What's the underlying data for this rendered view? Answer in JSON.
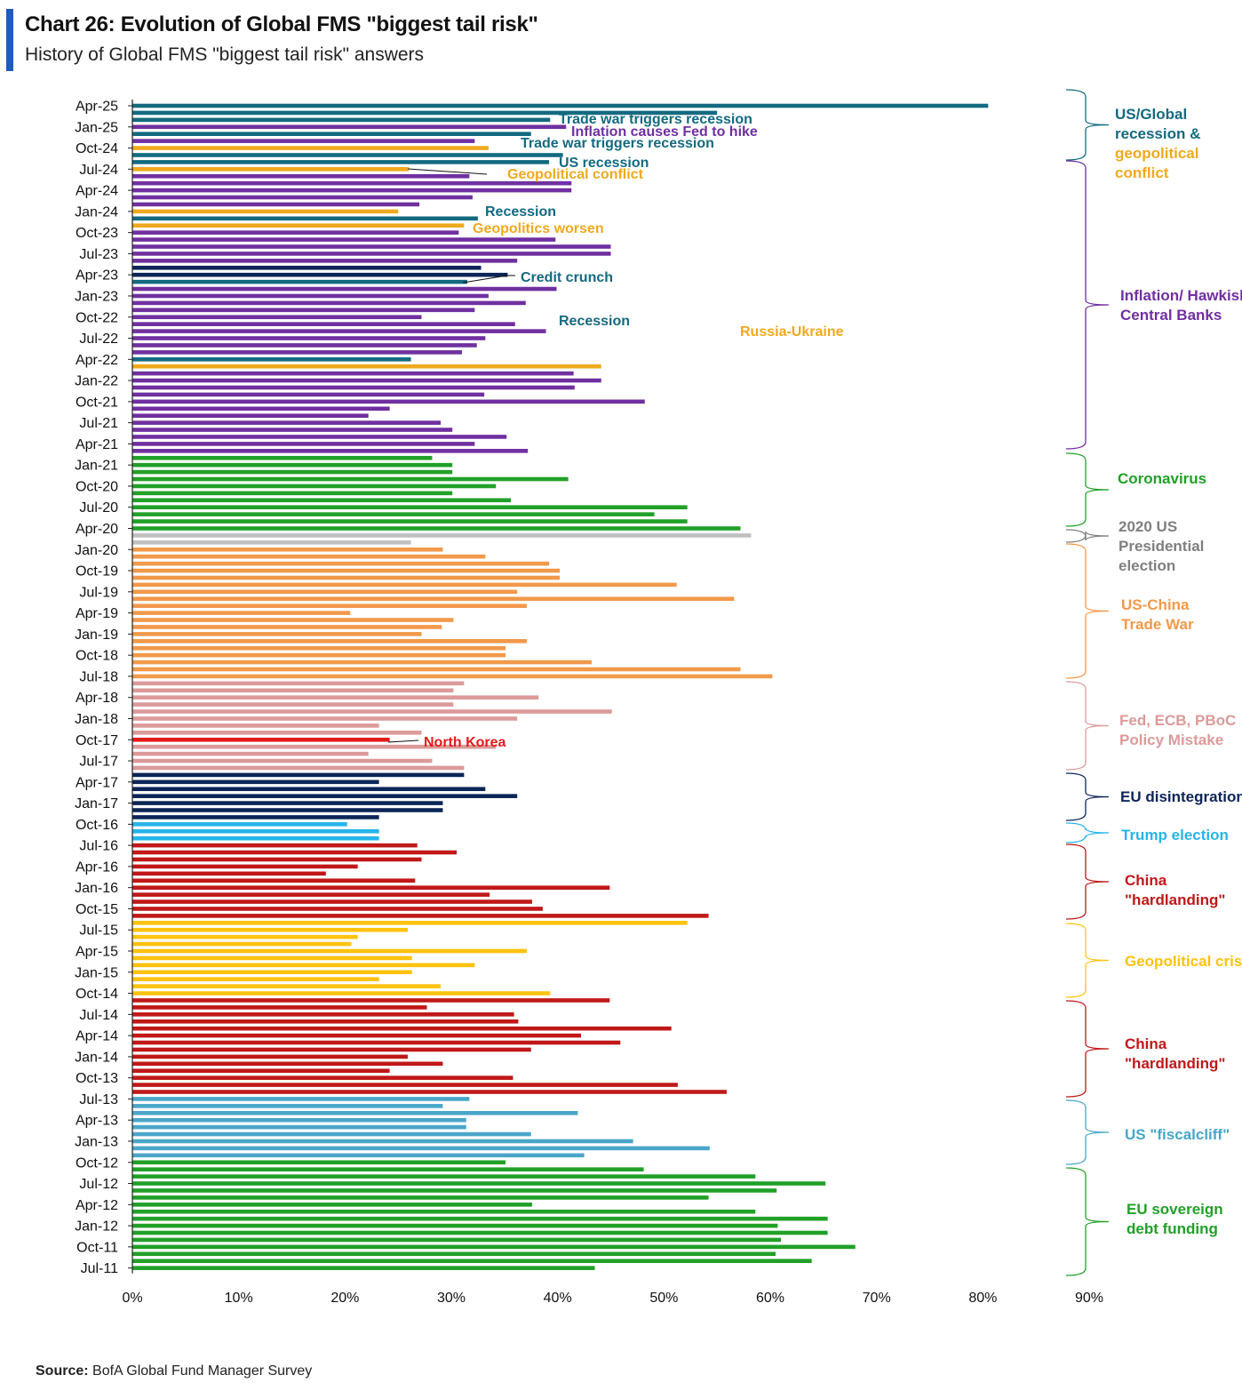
{
  "header": {
    "title": "Chart 26: Evolution of Global FMS \"biggest tail risk\"",
    "subtitle": "History of Global FMS \"biggest tail risk\" answers"
  },
  "footer": {
    "source_label": "Source:",
    "source_text": "BofA Global Fund Manager Survey"
  },
  "chart_data": {
    "type": "bar",
    "orientation": "horizontal",
    "title": "Chart 26: Evolution of Global FMS \"biggest tail risk\"",
    "subtitle": "History of Global FMS \"biggest tail risk\" answers",
    "xlim": [
      0,
      90
    ],
    "x_ticks": [
      "0%",
      "10%",
      "20%",
      "30%",
      "40%",
      "50%",
      "60%",
      "70%",
      "80%",
      "90%"
    ],
    "y_tick_labels": [
      "Apr-25",
      "Jan-25",
      "Oct-24",
      "Jul-24",
      "Apr-24",
      "Jan-24",
      "Oct-23",
      "Jul-23",
      "Apr-23",
      "Jan-23",
      "Oct-22",
      "Jul-22",
      "Apr-22",
      "Jan-22",
      "Oct-21",
      "Jul-21",
      "Apr-21",
      "Jan-21",
      "Oct-20",
      "Jul-20",
      "Apr-20",
      "Jan-20",
      "Oct-19",
      "Jul-19",
      "Apr-19",
      "Jan-19",
      "Oct-18",
      "Jul-18",
      "Apr-18",
      "Jan-18",
      "Oct-17",
      "Jul-17",
      "Apr-17",
      "Jan-17",
      "Oct-16",
      "Jul-16",
      "Apr-16",
      "Jan-16",
      "Oct-15",
      "Jul-15",
      "Apr-15",
      "Jan-15",
      "Oct-14",
      "Jul-14",
      "Apr-14",
      "Jan-14",
      "Oct-13",
      "Jul-13",
      "Apr-13",
      "Jan-13",
      "Oct-12",
      "Jul-12",
      "Apr-12",
      "Jan-12",
      "Oct-11",
      "Jul-11"
    ],
    "colors": {
      "teal": "#136a80",
      "purple": "#7030a0",
      "orange_gold": "#f0a91e",
      "navy": "#0c2557",
      "green": "#21a028",
      "gray": "#bfbfbf",
      "orange": "#f2994a",
      "pink": "#dc9a9a",
      "red": "#e51a1a",
      "sky": "#27b5ea",
      "darkred": "#c01818",
      "yellow": "#ffc20e",
      "steel": "#4aa6c8"
    },
    "bars": [
      {
        "month": "Apr-25",
        "value": 80.5,
        "color": "teal"
      },
      {
        "month": "Mar-25",
        "value": 55,
        "color": "teal"
      },
      {
        "month": "Feb-25",
        "value": 39.3,
        "color": "teal"
      },
      {
        "month": "Jan-25",
        "value": 40.8,
        "color": "purple"
      },
      {
        "month": "Dec-24",
        "value": 37.5,
        "color": "teal"
      },
      {
        "month": "Nov-24",
        "value": 32.2,
        "color": "purple"
      },
      {
        "month": "Oct-24",
        "value": 33.5,
        "color": "orange_gold"
      },
      {
        "month": "Sep-24",
        "value": 40.5,
        "color": "teal"
      },
      {
        "month": "Aug-24",
        "value": 39.2,
        "color": "teal"
      },
      {
        "month": "Jul-24",
        "value": 26,
        "color": "orange_gold"
      },
      {
        "month": "Jun-24",
        "value": 31.7,
        "color": "purple"
      },
      {
        "month": "May-24",
        "value": 41.3,
        "color": "purple"
      },
      {
        "month": "Apr-24",
        "value": 41.3,
        "color": "purple"
      },
      {
        "month": "Mar-24",
        "value": 32,
        "color": "purple"
      },
      {
        "month": "Feb-24",
        "value": 27,
        "color": "purple"
      },
      {
        "month": "Jan-24",
        "value": 25,
        "color": "orange_gold"
      },
      {
        "month": "Dec-23",
        "value": 32.5,
        "color": "teal"
      },
      {
        "month": "Nov-23",
        "value": 31.2,
        "color": "orange_gold"
      },
      {
        "month": "Oct-23",
        "value": 30.7,
        "color": "purple"
      },
      {
        "month": "Sep-23",
        "value": 39.8,
        "color": "purple"
      },
      {
        "month": "Aug-23",
        "value": 45,
        "color": "purple"
      },
      {
        "month": "Jul-23",
        "value": 45,
        "color": "purple"
      },
      {
        "month": "Jun-23",
        "value": 36.2,
        "color": "purple"
      },
      {
        "month": "May-23",
        "value": 32.8,
        "color": "navy"
      },
      {
        "month": "Apr-23",
        "value": 35.3,
        "color": "navy"
      },
      {
        "month": "Mar-23",
        "value": 31.5,
        "color": "teal"
      },
      {
        "month": "Feb-23",
        "value": 39.9,
        "color": "purple"
      },
      {
        "month": "Jan-23",
        "value": 33.5,
        "color": "purple"
      },
      {
        "month": "Dec-22",
        "value": 37,
        "color": "purple"
      },
      {
        "month": "Nov-22",
        "value": 32.2,
        "color": "purple"
      },
      {
        "month": "Oct-22",
        "value": 27.2,
        "color": "purple"
      },
      {
        "month": "Sep-22",
        "value": 36,
        "color": "purple"
      },
      {
        "month": "Aug-22",
        "value": 38.9,
        "color": "purple"
      },
      {
        "month": "Jul-22",
        "value": 33.2,
        "color": "purple"
      },
      {
        "month": "Jun-22",
        "value": 32.4,
        "color": "purple"
      },
      {
        "month": "May-22",
        "value": 31,
        "color": "purple"
      },
      {
        "month": "Apr-22",
        "value": 26.2,
        "color": "teal"
      },
      {
        "month": "Mar-22",
        "value": 44.1,
        "color": "orange_gold"
      },
      {
        "month": "Feb-22",
        "value": 41.5,
        "color": "purple"
      },
      {
        "month": "Jan-22",
        "value": 44.1,
        "color": "purple"
      },
      {
        "month": "Dec-21",
        "value": 41.6,
        "color": "purple"
      },
      {
        "month": "Nov-21",
        "value": 33.1,
        "color": "purple"
      },
      {
        "month": "Oct-21",
        "value": 48.2,
        "color": "purple"
      },
      {
        "month": "Sep-21",
        "value": 24.2,
        "color": "purple"
      },
      {
        "month": "Aug-21",
        "value": 22.2,
        "color": "purple"
      },
      {
        "month": "Jul-21",
        "value": 29,
        "color": "purple"
      },
      {
        "month": "Jun-21",
        "value": 30.1,
        "color": "purple"
      },
      {
        "month": "May-21",
        "value": 35.2,
        "color": "purple"
      },
      {
        "month": "Apr-21",
        "value": 32.2,
        "color": "purple"
      },
      {
        "month": "Mar-21",
        "value": 37.2,
        "color": "purple"
      },
      {
        "month": "Feb-21",
        "value": 28.2,
        "color": "green"
      },
      {
        "month": "Jan-21",
        "value": 30.1,
        "color": "green"
      },
      {
        "month": "Dec-20",
        "value": 30.1,
        "color": "green"
      },
      {
        "month": "Nov-20",
        "value": 41,
        "color": "green"
      },
      {
        "month": "Oct-20",
        "value": 34.2,
        "color": "green"
      },
      {
        "month": "Sep-20",
        "value": 30.1,
        "color": "green"
      },
      {
        "month": "Aug-20",
        "value": 35.6,
        "color": "green"
      },
      {
        "month": "Jul-20",
        "value": 52.2,
        "color": "green"
      },
      {
        "month": "Jun-20",
        "value": 49.1,
        "color": "green"
      },
      {
        "month": "May-20",
        "value": 52.2,
        "color": "green"
      },
      {
        "month": "Apr-20",
        "value": 57.2,
        "color": "green"
      },
      {
        "month": "Mar-20",
        "value": 58.2,
        "color": "gray"
      },
      {
        "month": "Feb-20",
        "value": 26.2,
        "color": "gray"
      },
      {
        "month": "Jan-20",
        "value": 29.2,
        "color": "orange"
      },
      {
        "month": "Dec-19",
        "value": 33.2,
        "color": "orange"
      },
      {
        "month": "Nov-19",
        "value": 39.2,
        "color": "orange"
      },
      {
        "month": "Oct-19",
        "value": 40.2,
        "color": "orange"
      },
      {
        "month": "Sep-19",
        "value": 40.2,
        "color": "orange"
      },
      {
        "month": "Aug-19",
        "value": 51.2,
        "color": "orange"
      },
      {
        "month": "Jul-19",
        "value": 36.2,
        "color": "orange"
      },
      {
        "month": "Jun-19",
        "value": 56.6,
        "color": "orange"
      },
      {
        "month": "May-19",
        "value": 37.1,
        "color": "orange"
      },
      {
        "month": "Apr-19",
        "value": 20.5,
        "color": "orange"
      },
      {
        "month": "Mar-19",
        "value": 30.2,
        "color": "orange"
      },
      {
        "month": "Feb-19",
        "value": 29.1,
        "color": "orange"
      },
      {
        "month": "Jan-19",
        "value": 27.2,
        "color": "orange"
      },
      {
        "month": "Dec-18",
        "value": 37.1,
        "color": "orange"
      },
      {
        "month": "Nov-18",
        "value": 35.1,
        "color": "orange"
      },
      {
        "month": "Oct-18",
        "value": 35.1,
        "color": "orange"
      },
      {
        "month": "Sep-18",
        "value": 43.2,
        "color": "orange"
      },
      {
        "month": "Aug-18",
        "value": 57.2,
        "color": "orange"
      },
      {
        "month": "Jul-18",
        "value": 60.2,
        "color": "orange"
      },
      {
        "month": "Jun-18",
        "value": 31.2,
        "color": "pink"
      },
      {
        "month": "May-18",
        "value": 30.2,
        "color": "pink"
      },
      {
        "month": "Apr-18",
        "value": 38.2,
        "color": "pink"
      },
      {
        "month": "Mar-18",
        "value": 30.2,
        "color": "pink"
      },
      {
        "month": "Feb-18",
        "value": 45.1,
        "color": "pink"
      },
      {
        "month": "Jan-18",
        "value": 36.2,
        "color": "pink"
      },
      {
        "month": "Dec-17",
        "value": 23.2,
        "color": "pink"
      },
      {
        "month": "Nov-17",
        "value": 27.2,
        "color": "pink"
      },
      {
        "month": "Oct-17",
        "value": 24.2,
        "color": "red"
      },
      {
        "month": "Sep-17",
        "value": 34.2,
        "color": "pink"
      },
      {
        "month": "Aug-17",
        "value": 22.2,
        "color": "pink"
      },
      {
        "month": "Jul-17",
        "value": 28.2,
        "color": "pink"
      },
      {
        "month": "Jun-17",
        "value": 31.2,
        "color": "pink"
      },
      {
        "month": "May-17",
        "value": 31.2,
        "color": "navy"
      },
      {
        "month": "Apr-17",
        "value": 23.2,
        "color": "navy"
      },
      {
        "month": "Mar-17",
        "value": 33.2,
        "color": "navy"
      },
      {
        "month": "Feb-17",
        "value": 36.2,
        "color": "navy"
      },
      {
        "month": "Jan-17",
        "value": 29.2,
        "color": "navy"
      },
      {
        "month": "Dec-16",
        "value": 29.2,
        "color": "navy"
      },
      {
        "month": "Nov-16",
        "value": 23.2,
        "color": "navy"
      },
      {
        "month": "Oct-16",
        "value": 20.2,
        "color": "sky"
      },
      {
        "month": "Sep-16",
        "value": 23.2,
        "color": "sky"
      },
      {
        "month": "Aug-16",
        "value": 23.2,
        "color": "sky"
      },
      {
        "month": "Jul-16",
        "value": 26.8,
        "color": "darkred"
      },
      {
        "month": "Jun-16",
        "value": 30.5,
        "color": "darkred"
      },
      {
        "month": "May-16",
        "value": 27.2,
        "color": "darkred"
      },
      {
        "month": "Apr-16",
        "value": 21.2,
        "color": "darkred"
      },
      {
        "month": "Mar-16",
        "value": 18.2,
        "color": "darkred"
      },
      {
        "month": "Feb-16",
        "value": 26.6,
        "color": "darkred"
      },
      {
        "month": "Jan-16",
        "value": 44.9,
        "color": "darkred"
      },
      {
        "month": "Dec-15",
        "value": 33.6,
        "color": "darkred"
      },
      {
        "month": "Nov-15",
        "value": 37.6,
        "color": "darkred"
      },
      {
        "month": "Oct-15",
        "value": 38.6,
        "color": "darkred"
      },
      {
        "month": "Sep-15",
        "value": 54.2,
        "color": "darkred"
      },
      {
        "month": "Aug-15",
        "value": 52.2,
        "color": "yellow"
      },
      {
        "month": "Jul-15",
        "value": 25.9,
        "color": "yellow"
      },
      {
        "month": "Jun-15",
        "value": 21.2,
        "color": "yellow"
      },
      {
        "month": "May-15",
        "value": 20.6,
        "color": "yellow"
      },
      {
        "month": "Apr-15",
        "value": 37.1,
        "color": "yellow"
      },
      {
        "month": "Mar-15",
        "value": 26.3,
        "color": "yellow"
      },
      {
        "month": "Feb-15",
        "value": 32.2,
        "color": "yellow"
      },
      {
        "month": "Jan-15",
        "value": 26.3,
        "color": "yellow"
      },
      {
        "month": "Dec-14",
        "value": 23.2,
        "color": "yellow"
      },
      {
        "month": "Nov-14",
        "value": 29,
        "color": "yellow"
      },
      {
        "month": "Oct-14",
        "value": 39.3,
        "color": "yellow"
      },
      {
        "month": "Sep-14",
        "value": 44.9,
        "color": "darkred"
      },
      {
        "month": "Aug-14",
        "value": 27.7,
        "color": "darkred"
      },
      {
        "month": "Jul-14",
        "value": 35.9,
        "color": "darkred"
      },
      {
        "month": "Jun-14",
        "value": 36.3,
        "color": "darkred"
      },
      {
        "month": "May-14",
        "value": 50.7,
        "color": "darkred"
      },
      {
        "month": "Apr-14",
        "value": 42.2,
        "color": "darkred"
      },
      {
        "month": "Mar-14",
        "value": 45.9,
        "color": "darkred"
      },
      {
        "month": "Feb-14",
        "value": 37.5,
        "color": "darkred"
      },
      {
        "month": "Jan-14",
        "value": 25.9,
        "color": "darkred"
      },
      {
        "month": "Dec-13",
        "value": 29.2,
        "color": "darkred"
      },
      {
        "month": "Nov-13",
        "value": 24.2,
        "color": "darkred"
      },
      {
        "month": "Oct-13",
        "value": 35.8,
        "color": "darkred"
      },
      {
        "month": "Sep-13",
        "value": 51.3,
        "color": "darkred"
      },
      {
        "month": "Aug-13",
        "value": 55.9,
        "color": "darkred"
      },
      {
        "month": "Jul-13",
        "value": 31.7,
        "color": "steel"
      },
      {
        "month": "Jun-13",
        "value": 29.2,
        "color": "steel"
      },
      {
        "month": "May-13",
        "value": 41.9,
        "color": "steel"
      },
      {
        "month": "Apr-13",
        "value": 31.4,
        "color": "steel"
      },
      {
        "month": "Mar-13",
        "value": 31.4,
        "color": "steel"
      },
      {
        "month": "Feb-13",
        "value": 37.5,
        "color": "steel"
      },
      {
        "month": "Jan-13",
        "value": 47.1,
        "color": "steel"
      },
      {
        "month": "Dec-12",
        "value": 54.3,
        "color": "steel"
      },
      {
        "month": "Nov-12",
        "value": 42.5,
        "color": "steel"
      },
      {
        "month": "Oct-12",
        "value": 35.1,
        "color": "green"
      },
      {
        "month": "Sep-12",
        "value": 48.1,
        "color": "green"
      },
      {
        "month": "Aug-12",
        "value": 58.6,
        "color": "green"
      },
      {
        "month": "Jul-12",
        "value": 65.2,
        "color": "green"
      },
      {
        "month": "Jun-12",
        "value": 60.6,
        "color": "green"
      },
      {
        "month": "May-12",
        "value": 54.2,
        "color": "green"
      },
      {
        "month": "Apr-12",
        "value": 37.6,
        "color": "green"
      },
      {
        "month": "Mar-12",
        "value": 58.6,
        "color": "green"
      },
      {
        "month": "Feb-12",
        "value": 65.4,
        "color": "green"
      },
      {
        "month": "Jan-12",
        "value": 60.7,
        "color": "green"
      },
      {
        "month": "Dec-11",
        "value": 65.4,
        "color": "green"
      },
      {
        "month": "Nov-11",
        "value": 61,
        "color": "green"
      },
      {
        "month": "Oct-11",
        "value": 68,
        "color": "green"
      },
      {
        "month": "Sep-11",
        "value": 60.5,
        "color": "green"
      },
      {
        "month": "Aug-11",
        "value": 63.9,
        "color": "green"
      },
      {
        "month": "Jul-11",
        "value": 43.5,
        "color": "green"
      }
    ],
    "annotations": [
      {
        "text": "Trade war triggers recession",
        "color": "teal"
      },
      {
        "text": "Inflation causes Fed to hike",
        "color": "purple"
      },
      {
        "text": "Trade war triggers recession",
        "color": "teal"
      },
      {
        "text": "US recession",
        "color": "teal"
      },
      {
        "text": "Geopolitical conflict",
        "color": "orange_gold"
      },
      {
        "text": "Recession",
        "color": "teal"
      },
      {
        "text": "Geopolitics worsen",
        "color": "orange_gold"
      },
      {
        "text": "Credit crunch",
        "color": "teal"
      },
      {
        "text": "Recession",
        "color": "teal"
      },
      {
        "text": "Russia-Ukraine",
        "color": "orange_gold"
      },
      {
        "text": "North Korea",
        "color": "red"
      }
    ],
    "groups": [
      {
        "lines": [
          "US/Global",
          "recession &"
        ],
        "extra_lines": [
          "geopolitical",
          "conflict"
        ],
        "color": "teal",
        "extra_color": "orange_gold"
      },
      {
        "lines": [
          "Inflation/ Hawkish",
          "Central Banks"
        ],
        "color": "purple"
      },
      {
        "lines": [
          "Coronavirus"
        ],
        "color": "green"
      },
      {
        "lines": [
          "2020 US",
          "Presidential",
          "election"
        ],
        "color": "gray_text"
      },
      {
        "lines": [
          "US-China",
          "Trade War"
        ],
        "color": "orange"
      },
      {
        "lines": [
          "Fed, ECB, PBoC",
          "Policy Mistake"
        ],
        "color": "pink"
      },
      {
        "lines": [
          "EU disintegration"
        ],
        "color": "navy"
      },
      {
        "lines": [
          "Trump election"
        ],
        "color": "sky"
      },
      {
        "lines": [
          "China",
          "\"hardlanding\""
        ],
        "color": "darkred"
      },
      {
        "lines": [
          "Geopolitical crisis"
        ],
        "color": "yellow"
      },
      {
        "lines": [
          "China",
          "\"hardlanding\""
        ],
        "color": "darkred"
      },
      {
        "lines": [
          "US \"fiscalcliff\""
        ],
        "color": "steel"
      },
      {
        "lines": [
          "EU sovereign",
          "debt funding"
        ],
        "color": "green"
      }
    ],
    "grid": false,
    "legend": "none"
  }
}
